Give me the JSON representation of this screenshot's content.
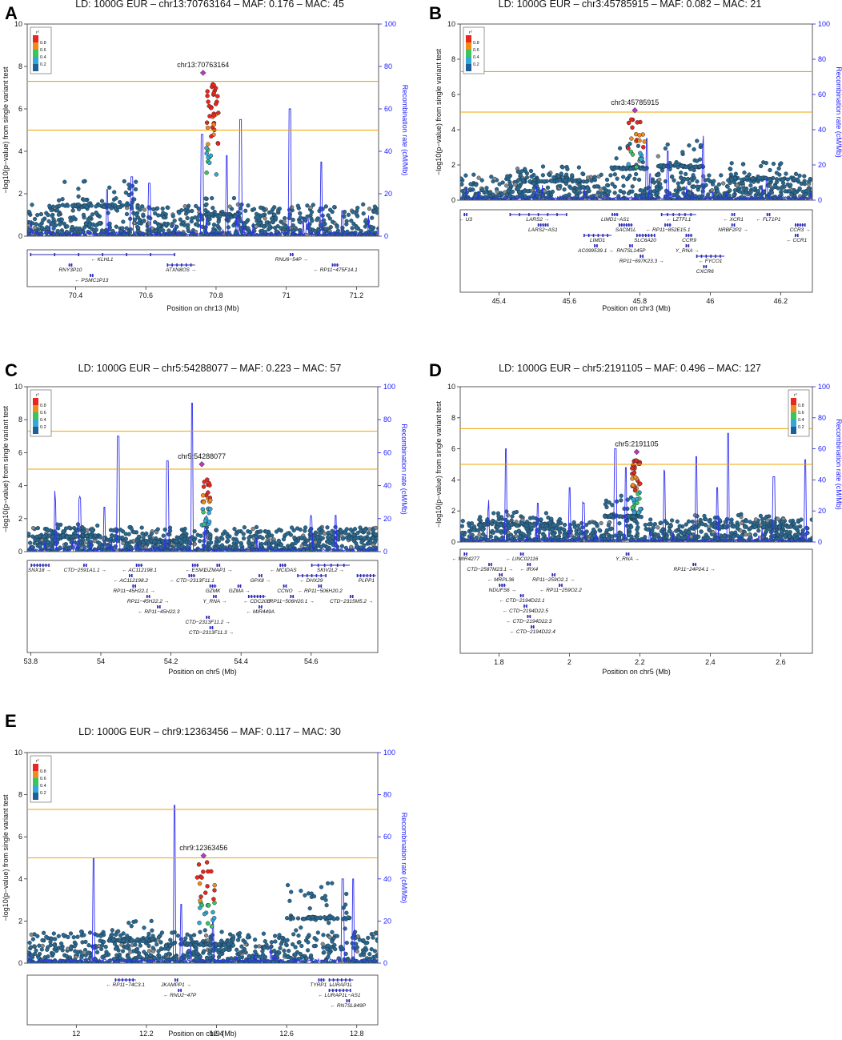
{
  "figure": {
    "ylabel": "−log10(p−value) from single variant test",
    "ylabel_right": "Recombination rate (cM/Mb)",
    "legend_title": "r²",
    "legend_ticks": [
      "0.8",
      "0.6",
      "0.4",
      "0.2"
    ],
    "legend_colors": [
      "#e8271f",
      "#f08c1c",
      "#39c45c",
      "#31a8d8",
      "#1e5f98"
    ],
    "sig_color": "#f2a300",
    "recomb_color": "#2f2ff0",
    "lead_color": "#b23bc4",
    "point_color": "#2b6990"
  },
  "chart_data": [
    {
      "panel": "A",
      "type": "scatter",
      "title": "LD: 1000G EUR – chr13:70763164 – MAF: 0.176 – MAC: 45",
      "xlabel": "Position on chr13 (Mb)",
      "xlim": [
        70.262,
        71.263
      ],
      "xticks": [
        70.4,
        70.6,
        70.8,
        71,
        71.2
      ],
      "xtick_labels": [
        "70.4",
        "70.6",
        "70.8",
        "71",
        "71.2"
      ],
      "ylim": [
        0,
        10
      ],
      "yticks": [
        0,
        2,
        4,
        6,
        8,
        10
      ],
      "rlim": [
        0,
        100
      ],
      "rticks": [
        0,
        20,
        40,
        60,
        80,
        100
      ],
      "thresholds": [
        7.3,
        5.0
      ],
      "lead": {
        "label": "chr13:70763164",
        "x": 70.763,
        "y": 7.7
      },
      "legend_side": "left",
      "signal": {
        "center": 70.79,
        "width": 0.035,
        "peak": 7.2,
        "n": 45
      },
      "shoulders": [
        [
          70.35,
          70.58,
          2.6
        ],
        [
          70.75,
          70.86,
          1.8
        ]
      ],
      "recomb_spikes": [
        [
          70.49,
          22
        ],
        [
          70.56,
          28
        ],
        [
          70.61,
          25
        ],
        [
          70.76,
          48
        ],
        [
          70.83,
          38
        ],
        [
          70.87,
          55
        ],
        [
          71.01,
          60
        ],
        [
          71.06,
          8
        ],
        [
          71.1,
          35
        ],
        [
          71.16,
          12
        ]
      ],
      "gene_rows": 3,
      "genes": [
        {
          "name": "← KLHL1",
          "start": 70.27,
          "end": 70.68,
          "row": 0
        },
        {
          "name": "RNY3P10",
          "start": 70.38,
          "end": 70.39,
          "row": 1
        },
        {
          "name": "← PSMC1P13",
          "start": 70.44,
          "end": 70.45,
          "row": 2
        },
        {
          "name": "ATXN8OS →",
          "start": 70.66,
          "end": 70.74,
          "row": 1
        },
        {
          "name": "RNU6−54P →",
          "start": 71.01,
          "end": 71.02,
          "row": 0
        },
        {
          "name": "← RP11−475F14.1",
          "start": 71.13,
          "end": 71.15,
          "row": 1
        }
      ]
    },
    {
      "panel": "B",
      "type": "scatter",
      "title": "LD: 1000G EUR – chr3:45785915 – MAF: 0.082 – MAC: 21",
      "xlabel": "Position on chr3 (Mb)",
      "xlim": [
        45.29,
        46.29
      ],
      "xticks": [
        45.4,
        45.6,
        45.8,
        46,
        46.2
      ],
      "xtick_labels": [
        "45.4",
        "45.6",
        "45.8",
        "46",
        "46.2"
      ],
      "ylim": [
        0,
        10
      ],
      "yticks": [
        0,
        2,
        4,
        6,
        8,
        10
      ],
      "rlim": [
        0,
        100
      ],
      "rticks": [
        0,
        20,
        40,
        60,
        80,
        100
      ],
      "thresholds": [
        7.3,
        5.0
      ],
      "lead": {
        "label": "chr3:45785915",
        "x": 45.786,
        "y": 5.1
      },
      "legend_side": "left",
      "signal": {
        "center": 45.79,
        "width": 0.05,
        "peak": 4.7,
        "n": 25
      },
      "shoulders": [
        [
          45.45,
          45.65,
          2.0
        ],
        [
          45.72,
          45.82,
          3.3
        ],
        [
          45.85,
          45.98,
          3.5
        ],
        [
          46.05,
          46.25,
          2.2
        ]
      ],
      "recomb_spikes": [
        [
          45.82,
          35
        ],
        [
          45.83,
          15
        ],
        [
          45.88,
          28
        ],
        [
          45.98,
          30
        ],
        [
          46.16,
          12
        ]
      ],
      "gene_rows": 5,
      "genes": [
        {
          "name": "← U3",
          "start": 45.3,
          "end": 45.31,
          "row": 0
        },
        {
          "name": "LARS2 →",
          "start": 45.43,
          "end": 45.59,
          "row": 0
        },
        {
          "name": "LARS2−AS1",
          "start": 45.51,
          "end": 45.54,
          "row": 1
        },
        {
          "name": "LIMD1",
          "start": 45.64,
          "end": 45.72,
          "row": 2
        },
        {
          "name": "AC099539.1 →",
          "start": 45.67,
          "end": 45.68,
          "row": 3
        },
        {
          "name": "LIMD1−AS1",
          "start": 45.72,
          "end": 45.74,
          "row": 0
        },
        {
          "name": "SACM1L",
          "start": 45.74,
          "end": 45.78,
          "row": 1
        },
        {
          "name": "RN7SL145P",
          "start": 45.77,
          "end": 45.78,
          "row": 3
        },
        {
          "name": "SLC6A20",
          "start": 45.79,
          "end": 45.84,
          "row": 2
        },
        {
          "name": "RP11−697K23.3 →",
          "start": 45.8,
          "end": 45.81,
          "row": 4
        },
        {
          "name": "← LZTFL1",
          "start": 45.86,
          "end": 45.96,
          "row": 0
        },
        {
          "name": "← RP11−852E15.1",
          "start": 45.87,
          "end": 45.89,
          "row": 1
        },
        {
          "name": "CCR9",
          "start": 45.93,
          "end": 45.95,
          "row": 2
        },
        {
          "name": "Y_RNA →",
          "start": 45.93,
          "end": 45.94,
          "row": 3
        },
        {
          "name": "← FYCO1",
          "start": 45.96,
          "end": 46.04,
          "row": 4
        },
        {
          "name": "CXCR6",
          "start": 45.98,
          "end": 45.99,
          "row": 5
        },
        {
          "name": "← XCR1",
          "start": 46.06,
          "end": 46.07,
          "row": 0
        },
        {
          "name": "NRBF2P2 →",
          "start": 46.06,
          "end": 46.07,
          "row": 1
        },
        {
          "name": "← FLT1P1",
          "start": 46.16,
          "end": 46.17,
          "row": 0
        },
        {
          "name": "CCR3 →",
          "start": 46.24,
          "end": 46.27,
          "row": 1
        },
        {
          "name": "← CCR1",
          "start": 46.24,
          "end": 46.25,
          "row": 2
        }
      ]
    },
    {
      "panel": "C",
      "type": "scatter",
      "title": "LD: 1000G EUR – chr5:54288077 – MAF: 0.223 – MAC: 57",
      "xlabel": "Position on chr5 (Mb)",
      "xlim": [
        53.79,
        54.79
      ],
      "xticks": [
        53.8,
        54,
        54.2,
        54.4,
        54.6
      ],
      "xtick_labels": [
        "53.8",
        "54",
        "54.2",
        "54.4",
        "54.6"
      ],
      "ylim": [
        0,
        10
      ],
      "yticks": [
        0,
        2,
        4,
        6,
        8,
        10
      ],
      "rlim": [
        0,
        100
      ],
      "rticks": [
        0,
        20,
        40,
        60,
        80,
        100
      ],
      "thresholds": [
        7.3,
        5.0
      ],
      "lead": {
        "label": "chr5:54288077",
        "x": 54.288,
        "y": 5.3
      },
      "legend_side": "left",
      "signal": {
        "center": 54.3,
        "width": 0.025,
        "peak": 4.4,
        "n": 30
      },
      "shoulders": [
        [
          53.8,
          54.0,
          1.7
        ],
        [
          54.1,
          54.25,
          1.1
        ],
        [
          54.55,
          54.79,
          1.5
        ]
      ],
      "recomb_spikes": [
        [
          53.87,
          30
        ],
        [
          53.94,
          32
        ],
        [
          54.01,
          27
        ],
        [
          54.05,
          70
        ],
        [
          54.19,
          55
        ],
        [
          54.26,
          90
        ],
        [
          54.3,
          20
        ],
        [
          54.6,
          20
        ],
        [
          54.67,
          22
        ]
      ],
      "gene_rows": 8,
      "genes": [
        {
          "name": "SNX18 →",
          "start": 53.8,
          "end": 53.85,
          "row": 0
        },
        {
          "name": "CTD−2591A1.1 →",
          "start": 53.95,
          "end": 53.96,
          "row": 0
        },
        {
          "name": "← AC112198.1",
          "start": 54.1,
          "end": 54.12,
          "row": 0
        },
        {
          "name": "← AC112198.2",
          "start": 54.08,
          "end": 54.09,
          "row": 1
        },
        {
          "name": "RP11−45H22.1 →",
          "start": 54.09,
          "end": 54.1,
          "row": 2
        },
        {
          "name": "RP11−45H22.2 →",
          "start": 54.13,
          "end": 54.14,
          "row": 3
        },
        {
          "name": "← RP11−45H22.3",
          "start": 54.16,
          "end": 54.17,
          "row": 4
        },
        {
          "name": "← ESM1",
          "start": 54.26,
          "end": 54.28,
          "row": 0
        },
        {
          "name": "← CTD−2313F11.1",
          "start": 54.25,
          "end": 54.27,
          "row": 1
        },
        {
          "name": "GZMK",
          "start": 54.31,
          "end": 54.33,
          "row": 2
        },
        {
          "name": "Y_RNA →",
          "start": 54.32,
          "end": 54.33,
          "row": 3
        },
        {
          "name": "CTD−2313F11.2 →",
          "start": 54.3,
          "end": 54.31,
          "row": 5
        },
        {
          "name": "CTD−2313F11.3 →",
          "start": 54.31,
          "end": 54.32,
          "row": 6
        },
        {
          "name": "GZMAP1 →",
          "start": 54.33,
          "end": 54.34,
          "row": 0
        },
        {
          "name": "GZMA →",
          "start": 54.39,
          "end": 54.4,
          "row": 2
        },
        {
          "name": "← CDC20B",
          "start": 54.42,
          "end": 54.47,
          "row": 3
        },
        {
          "name": "← MIR449A",
          "start": 54.45,
          "end": 54.46,
          "row": 4
        },
        {
          "name": "GPX8 →",
          "start": 54.45,
          "end": 54.46,
          "row": 1
        },
        {
          "name": "← MCIDAS",
          "start": 54.51,
          "end": 54.53,
          "row": 0
        },
        {
          "name": "CCNO",
          "start": 54.52,
          "end": 54.53,
          "row": 2
        },
        {
          "name": "RP11−506H20.1 →",
          "start": 54.54,
          "end": 54.55,
          "row": 3
        },
        {
          "name": "← DHX29",
          "start": 54.56,
          "end": 54.64,
          "row": 1
        },
        {
          "name": "← RP11−506H20.2",
          "start": 54.62,
          "end": 54.63,
          "row": 2
        },
        {
          "name": "SKIV2L2 →",
          "start": 54.6,
          "end": 54.71,
          "row": 0
        },
        {
          "name": "CTD−2315M5.2 →",
          "start": 54.71,
          "end": 54.72,
          "row": 3
        },
        {
          "name": "PLPP1",
          "start": 54.73,
          "end": 54.79,
          "row": 1
        }
      ]
    },
    {
      "panel": "D",
      "type": "scatter",
      "title": "LD: 1000G EUR – chr5:2191105 – MAF: 0.496 – MAC: 127",
      "xlabel": "Position on chr5 (Mb)",
      "xlim": [
        1.69,
        2.69
      ],
      "xticks": [
        1.8,
        2,
        2.2,
        2.4,
        2.6
      ],
      "xtick_labels": [
        "1.8",
        "2",
        "2.2",
        "2.4",
        "2.6"
      ],
      "ylim": [
        0,
        10
      ],
      "yticks": [
        0,
        2,
        4,
        6,
        8,
        10
      ],
      "rlim": [
        0,
        100
      ],
      "rticks": [
        0,
        20,
        40,
        60,
        80,
        100
      ],
      "thresholds": [
        7.3,
        5.0
      ],
      "lead": {
        "label": "chr5:2191105",
        "x": 2.191,
        "y": 5.8
      },
      "legend_side": "right",
      "signal": {
        "center": 2.19,
        "width": 0.025,
        "peak": 5.4,
        "n": 45
      },
      "shoulders": [
        [
          1.74,
          1.96,
          2.0
        ],
        [
          2.1,
          2.21,
          3.0
        ],
        [
          2.35,
          2.65,
          1.8
        ]
      ],
      "recomb_spikes": [
        [
          1.77,
          20
        ],
        [
          1.82,
          60
        ],
        [
          1.91,
          25
        ],
        [
          2.0,
          35
        ],
        [
          2.04,
          25
        ],
        [
          2.13,
          60
        ],
        [
          2.16,
          48
        ],
        [
          2.27,
          45
        ],
        [
          2.36,
          55
        ],
        [
          2.42,
          35
        ],
        [
          2.45,
          70
        ],
        [
          2.58,
          42
        ],
        [
          2.67,
          53
        ]
      ],
      "gene_rows": 8,
      "genes": [
        {
          "name": "← MIR4277",
          "start": 1.7,
          "end": 1.71,
          "row": 0
        },
        {
          "name": "CTD−2587M23.1 →",
          "start": 1.77,
          "end": 1.78,
          "row": 1
        },
        {
          "name": "← MRPL36",
          "start": 1.8,
          "end": 1.81,
          "row": 2
        },
        {
          "name": "NDUFS6 →",
          "start": 1.8,
          "end": 1.82,
          "row": 3
        },
        {
          "name": "← LINC02116",
          "start": 1.86,
          "end": 1.87,
          "row": 0
        },
        {
          "name": "← IRX4",
          "start": 1.88,
          "end": 1.89,
          "row": 1
        },
        {
          "name": "RP11−259O2.1 →",
          "start": 1.95,
          "end": 1.96,
          "row": 2
        },
        {
          "name": "← RP11−259O2.2",
          "start": 1.97,
          "end": 1.98,
          "row": 3
        },
        {
          "name": "← CTD−2194D22.1",
          "start": 1.86,
          "end": 1.87,
          "row": 4
        },
        {
          "name": "← CTD−2194D22.5",
          "start": 1.87,
          "end": 1.88,
          "row": 5
        },
        {
          "name": "← CTD−2194D22.3",
          "start": 1.88,
          "end": 1.89,
          "row": 6
        },
        {
          "name": "← CTD−2194D22.4",
          "start": 1.89,
          "end": 1.9,
          "row": 7
        },
        {
          "name": "Y_RNA →",
          "start": 2.16,
          "end": 2.17,
          "row": 0
        },
        {
          "name": "RP11−24P24.1 →",
          "start": 2.35,
          "end": 2.36,
          "row": 1
        }
      ]
    },
    {
      "panel": "E",
      "type": "scatter",
      "title": "LD: 1000G EUR – chr9:12363456 – MAF: 0.117 – MAC: 30",
      "xlabel": "Position on chr9 (Mb)",
      "xlim": [
        11.86,
        12.86
      ],
      "xticks": [
        12,
        12.2,
        12.4,
        12.6,
        12.8
      ],
      "xtick_labels": [
        "12",
        "12.2",
        "12.4",
        "12.6",
        "12.8"
      ],
      "ylim": [
        0,
        10
      ],
      "yticks": [
        0,
        2,
        4,
        6,
        8,
        10
      ],
      "rlim": [
        0,
        100
      ],
      "rticks": [
        0,
        20,
        40,
        60,
        80,
        100
      ],
      "thresholds": [
        7.3,
        5.0
      ],
      "lead": {
        "label": "chr9:12363456",
        "x": 12.363,
        "y": 5.1
      },
      "legend_side": "left",
      "signal": {
        "center": 12.37,
        "width": 0.05,
        "peak": 4.9,
        "n": 30
      },
      "shoulders": [
        [
          12.1,
          12.22,
          2.0
        ],
        [
          12.31,
          12.45,
          1.6
        ],
        [
          12.6,
          12.78,
          3.9
        ]
      ],
      "recomb_spikes": [
        [
          12.05,
          50
        ],
        [
          12.28,
          75
        ],
        [
          12.3,
          28
        ],
        [
          12.39,
          20
        ],
        [
          12.76,
          40
        ],
        [
          12.79,
          40
        ]
      ],
      "gene_rows": 3,
      "genes": [
        {
          "name": "← RP11−74C3.1",
          "start": 12.11,
          "end": 12.17,
          "row": 0
        },
        {
          "name": "JKAMPP1 →",
          "start": 12.28,
          "end": 12.29,
          "row": 0
        },
        {
          "name": "← RNU2−47P",
          "start": 12.29,
          "end": 12.3,
          "row": 1
        },
        {
          "name": "TYRP1 →",
          "start": 12.69,
          "end": 12.71,
          "row": 0
        },
        {
          "name": "LURAP1L",
          "start": 12.72,
          "end": 12.79,
          "row": 0
        },
        {
          "name": "← LURAP1L−AS1",
          "start": 12.72,
          "end": 12.78,
          "row": 1
        },
        {
          "name": "← RN7SL849P",
          "start": 12.77,
          "end": 12.78,
          "row": 2
        }
      ]
    }
  ]
}
